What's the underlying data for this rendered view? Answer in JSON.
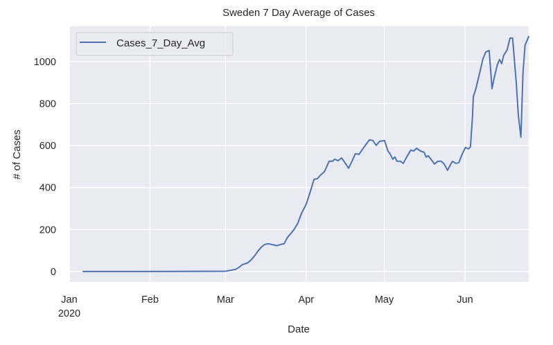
{
  "chart_data": {
    "type": "line",
    "title": "Sweden 7 Day Average of Cases",
    "xlabel": "Date",
    "ylabel": "# of Cases",
    "x_units": "days since 2020-01-01",
    "xlim": [
      0,
      176.5
    ],
    "ylim": [
      -50,
      1168
    ],
    "grid": true,
    "legend_position": "top-left",
    "x_ticks": [
      {
        "value": 0,
        "label": "Jan",
        "sublabel": "2020"
      },
      {
        "value": 31,
        "label": "Feb"
      },
      {
        "value": 60,
        "label": "Mar"
      },
      {
        "value": 91,
        "label": "Apr"
      },
      {
        "value": 121,
        "label": "May"
      },
      {
        "value": 152,
        "label": "Jun"
      }
    ],
    "y_ticks": [
      {
        "value": 0,
        "label": "0"
      },
      {
        "value": 200,
        "label": "200"
      },
      {
        "value": 400,
        "label": "400"
      },
      {
        "value": 600,
        "label": "600"
      },
      {
        "value": 800,
        "label": "800"
      },
      {
        "value": 1000,
        "label": "1000"
      }
    ],
    "series": [
      {
        "name": "Cases_7_Day_Avg",
        "color": "#4c72b0",
        "x": [
          5.3,
          31,
          60,
          63.9,
          65.2,
          66.5,
          68.4,
          69.7,
          71.1,
          72.4,
          73.7,
          75.1,
          76.4,
          77.7,
          79.0,
          79.8,
          81.2,
          82.5,
          83.8,
          85.2,
          86.5,
          87.8,
          89.2,
          91.0,
          92.6,
          94.0,
          95.3,
          96.4,
          98.0,
          99.8,
          101.1,
          101.9,
          103.3,
          104.6,
          105.9,
          107.3,
          108.6,
          109.9,
          111.3,
          113.1,
          115.3,
          116.6,
          117.9,
          119.2,
          121.1,
          122.4,
          123.2,
          124.3,
          125.1,
          125.9,
          127.2,
          128.3,
          129.6,
          131.2,
          132.3,
          133.4,
          134.9,
          136.3,
          137.1,
          137.9,
          138.9,
          140.3,
          141.6,
          142.9,
          144.0,
          145.3,
          146.4,
          147.2,
          148.5,
          149.6,
          150.9,
          152.2,
          153.3,
          154.1,
          154.9,
          155.2,
          156.3,
          157.0,
          157.8,
          158.9,
          160.0,
          161.3,
          162.4,
          163.2,
          164.5,
          165.3,
          166.1,
          166.9,
          168.2,
          169.3,
          170.3,
          171.7,
          172.5,
          173.5,
          174.3,
          175.1,
          176.5
        ],
        "y": [
          0,
          0,
          1,
          10,
          20,
          33,
          40,
          53,
          73,
          96,
          115,
          129,
          132,
          129,
          125,
          123,
          129,
          132,
          162,
          182,
          203,
          230,
          277,
          320,
          380,
          439,
          442,
          458,
          475,
          525,
          525,
          535,
          528,
          541,
          518,
          492,
          525,
          561,
          558,
          590,
          627,
          624,
          601,
          620,
          624,
          574,
          561,
          535,
          545,
          525,
          525,
          515,
          545,
          578,
          574,
          587,
          574,
          568,
          545,
          551,
          535,
          512,
          525,
          525,
          512,
          482,
          508,
          525,
          515,
          518,
          558,
          591,
          584,
          594,
          743,
          832,
          875,
          914,
          954,
          1013,
          1046,
          1053,
          871,
          921,
          987,
          1010,
          990,
          1030,
          1056,
          1112,
          1112,
          898,
          743,
          640,
          947,
          1079,
          1119
        ]
      }
    ]
  }
}
